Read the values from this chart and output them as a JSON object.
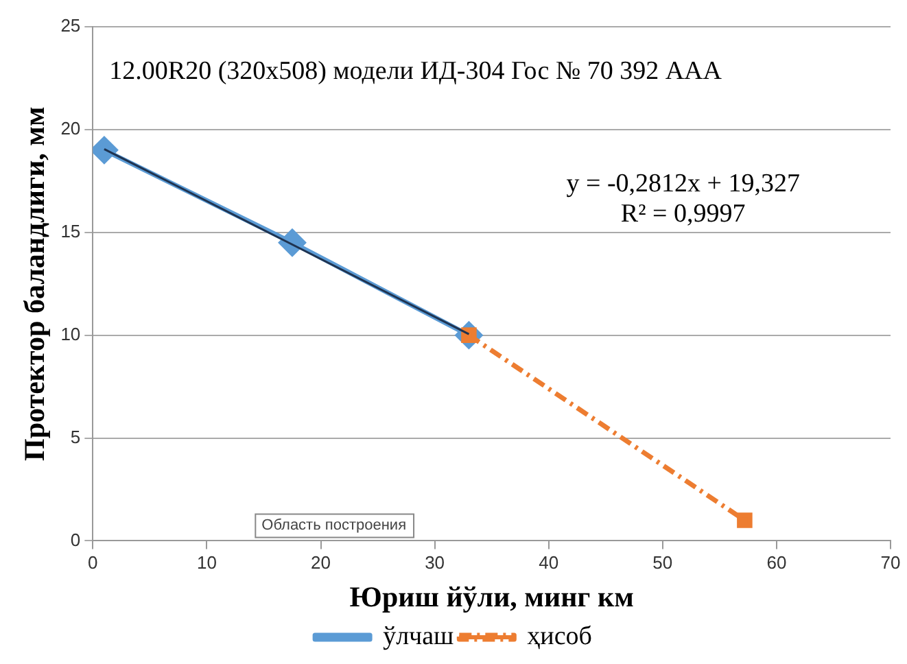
{
  "chart_data": {
    "type": "line",
    "title": "12.00R20 (320x508) модели ИД-304 Гос № 70 392 ААА",
    "xlabel": "Юриш йўли, минг км",
    "ylabel": "Протектор баландлиги, мм",
    "series": [
      {
        "name": "ўлчаш",
        "color": "#5b9bd5",
        "x": [
          1,
          17.5,
          33
        ],
        "values": [
          19,
          14.5,
          10
        ],
        "marker": "diamond",
        "line_style": "solid"
      },
      {
        "name": "ҳисоб",
        "color": "#ed7d31",
        "x": [
          33,
          57.2
        ],
        "values": [
          10,
          1
        ],
        "marker": "square",
        "line_style": "dashed"
      },
      {
        "type": "line",
        "color": "#1f3350",
        "x": [
          1,
          33
        ],
        "values": [
          19.05,
          10.05
        ],
        "marker": "none",
        "line_style": "solid"
      }
    ],
    "annotations": [
      "y = -0,2812x + 19,327",
      "R² = 0,9997",
      "Область построения"
    ],
    "xlim": [
      0,
      70
    ],
    "xticks": [
      0,
      10,
      20,
      30,
      40,
      50,
      60,
      70
    ],
    "ylim": [
      0,
      25
    ],
    "yticks": [
      0,
      5,
      10,
      15,
      20,
      25
    ],
    "grid": "y",
    "legend": "bottom"
  }
}
